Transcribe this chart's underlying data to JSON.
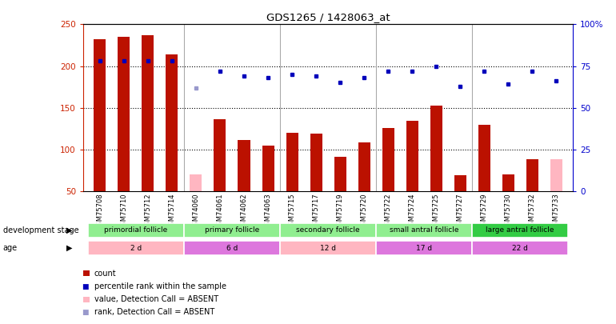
{
  "title": "GDS1265 / 1428063_at",
  "samples": [
    "GSM75708",
    "GSM75710",
    "GSM75712",
    "GSM75714",
    "GSM74060",
    "GSM74061",
    "GSM74062",
    "GSM74063",
    "GSM75715",
    "GSM75717",
    "GSM75719",
    "GSM75720",
    "GSM75722",
    "GSM75724",
    "GSM75725",
    "GSM75727",
    "GSM75729",
    "GSM75730",
    "GSM75732",
    "GSM75733"
  ],
  "count_values": [
    232,
    235,
    237,
    214,
    null,
    136,
    111,
    105,
    120,
    119,
    91,
    108,
    126,
    134,
    153,
    69,
    130,
    70,
    88,
    null
  ],
  "count_absent": [
    null,
    null,
    null,
    null,
    70,
    null,
    null,
    null,
    null,
    null,
    null,
    null,
    null,
    null,
    null,
    null,
    null,
    null,
    null,
    88
  ],
  "rank_pct": [
    78,
    78,
    78,
    78,
    null,
    72,
    69,
    68,
    70,
    69,
    65,
    68,
    72,
    72,
    75,
    63,
    72,
    64,
    72,
    66
  ],
  "rank_absent_pct": [
    null,
    null,
    null,
    null,
    62,
    null,
    null,
    null,
    null,
    null,
    null,
    null,
    null,
    null,
    null,
    null,
    null,
    null,
    null,
    null
  ],
  "groups": [
    {
      "label": "primordial follicle",
      "start": 0,
      "end": 4,
      "color": "#90ee90"
    },
    {
      "label": "primary follicle",
      "start": 4,
      "end": 8,
      "color": "#90ee90"
    },
    {
      "label": "secondary follicle",
      "start": 8,
      "end": 12,
      "color": "#90ee90"
    },
    {
      "label": "small antral follicle",
      "start": 12,
      "end": 16,
      "color": "#90ee90"
    },
    {
      "label": "large antral follicle",
      "start": 16,
      "end": 20,
      "color": "#33cc44"
    }
  ],
  "ages": [
    {
      "label": "2 d",
      "start": 0,
      "end": 4,
      "color": "#ffb6c1"
    },
    {
      "label": "6 d",
      "start": 4,
      "end": 8,
      "color": "#dd77dd"
    },
    {
      "label": "12 d",
      "start": 8,
      "end": 12,
      "color": "#ffb6c1"
    },
    {
      "label": "17 d",
      "start": 12,
      "end": 16,
      "color": "#dd77dd"
    },
    {
      "label": "22 d",
      "start": 16,
      "end": 20,
      "color": "#dd77dd"
    }
  ],
  "ylim_left": [
    50,
    250
  ],
  "ylim_right": [
    0,
    100
  ],
  "yticks_left": [
    50,
    100,
    150,
    200,
    250
  ],
  "yticks_right": [
    0,
    25,
    50,
    75,
    100
  ],
  "ytick_labels_right": [
    "0",
    "25",
    "50",
    "75",
    "100%"
  ],
  "bar_color": "#bb1100",
  "bar_absent_color": "#ffb6c1",
  "dot_color": "#0000bb",
  "dot_absent_color": "#9999cc",
  "bar_width": 0.5,
  "bg_color": "#ffffff",
  "plot_bg": "#ffffff",
  "left_label_color": "#cc2200",
  "right_label_color": "#0000cc"
}
